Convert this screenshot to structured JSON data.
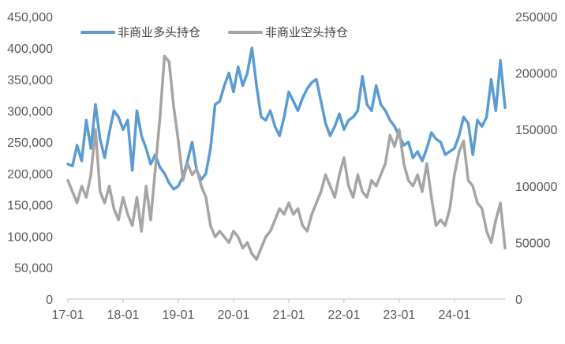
{
  "chart_data": {
    "type": "line",
    "title": "",
    "legend_position": "top-left",
    "grid": false,
    "x_range": [
      "2017-01",
      "2024-12"
    ],
    "x_tick_labels": [
      "17-01",
      "18-01",
      "19-01",
      "20-01",
      "21-01",
      "22-01",
      "23-01",
      "24-01"
    ],
    "y_left": {
      "range": [
        0,
        450000
      ],
      "tick_labels": [
        "0",
        "50,000",
        "100,000",
        "150,000",
        "200,000",
        "250,000",
        "300,000",
        "350,000",
        "400,000",
        "450,000"
      ]
    },
    "y_right": {
      "range": [
        0,
        250000
      ],
      "tick_labels": [
        "0",
        "50000",
        "100000",
        "150000",
        "200000",
        "250000"
      ]
    },
    "series": [
      {
        "name": "非商业多头持仓",
        "axis": "left",
        "color": "#5B9BD5",
        "x": [
          "2017-01",
          "2017-02",
          "2017-03",
          "2017-04",
          "2017-05",
          "2017-06",
          "2017-07",
          "2017-08",
          "2017-09",
          "2017-10",
          "2017-11",
          "2017-12",
          "2018-01",
          "2018-02",
          "2018-03",
          "2018-04",
          "2018-05",
          "2018-06",
          "2018-07",
          "2018-08",
          "2018-09",
          "2018-10",
          "2018-11",
          "2018-12",
          "2019-01",
          "2019-02",
          "2019-03",
          "2019-04",
          "2019-05",
          "2019-06",
          "2019-07",
          "2019-08",
          "2019-09",
          "2019-10",
          "2019-11",
          "2019-12",
          "2020-01",
          "2020-02",
          "2020-03",
          "2020-04",
          "2020-05",
          "2020-06",
          "2020-07",
          "2020-08",
          "2020-09",
          "2020-10",
          "2020-11",
          "2020-12",
          "2021-01",
          "2021-02",
          "2021-03",
          "2021-04",
          "2021-05",
          "2021-06",
          "2021-07",
          "2021-08",
          "2021-09",
          "2021-10",
          "2021-11",
          "2021-12",
          "2022-01",
          "2022-02",
          "2022-03",
          "2022-04",
          "2022-05",
          "2022-06",
          "2022-07",
          "2022-08",
          "2022-09",
          "2022-10",
          "2022-11",
          "2022-12",
          "2023-01",
          "2023-02",
          "2023-03",
          "2023-04",
          "2023-05",
          "2023-06",
          "2023-07",
          "2023-08",
          "2023-09",
          "2023-10",
          "2023-11",
          "2023-12",
          "2024-01",
          "2024-02",
          "2024-03",
          "2024-04",
          "2024-05",
          "2024-06",
          "2024-07",
          "2024-08",
          "2024-09",
          "2024-10",
          "2024-11",
          "2024-12"
        ],
        "values": [
          215000,
          212000,
          245000,
          220000,
          285000,
          240000,
          310000,
          255000,
          225000,
          265000,
          300000,
          290000,
          270000,
          285000,
          205000,
          300000,
          260000,
          240000,
          215000,
          230000,
          210000,
          200000,
          185000,
          175000,
          180000,
          195000,
          220000,
          250000,
          205000,
          190000,
          200000,
          240000,
          310000,
          315000,
          340000,
          360000,
          330000,
          370000,
          340000,
          360000,
          400000,
          340000,
          290000,
          285000,
          300000,
          275000,
          260000,
          290000,
          330000,
          315000,
          300000,
          320000,
          335000,
          345000,
          350000,
          315000,
          280000,
          260000,
          275000,
          295000,
          270000,
          285000,
          290000,
          300000,
          355000,
          310000,
          300000,
          340000,
          310000,
          300000,
          285000,
          275000,
          260000,
          245000,
          250000,
          225000,
          235000,
          220000,
          240000,
          265000,
          255000,
          250000,
          230000,
          235000,
          240000,
          260000,
          290000,
          280000,
          230000,
          285000,
          275000,
          290000,
          350000,
          300000,
          380000,
          305000
        ]
      },
      {
        "name": "非商业空头持仓",
        "axis": "right",
        "color": "#A5A5A5",
        "x": [
          "2017-01",
          "2017-02",
          "2017-03",
          "2017-04",
          "2017-05",
          "2017-06",
          "2017-07",
          "2017-08",
          "2017-09",
          "2017-10",
          "2017-11",
          "2017-12",
          "2018-01",
          "2018-02",
          "2018-03",
          "2018-04",
          "2018-05",
          "2018-06",
          "2018-07",
          "2018-08",
          "2018-09",
          "2018-10",
          "2018-11",
          "2018-12",
          "2019-01",
          "2019-02",
          "2019-03",
          "2019-04",
          "2019-05",
          "2019-06",
          "2019-07",
          "2019-08",
          "2019-09",
          "2019-10",
          "2019-11",
          "2019-12",
          "2020-01",
          "2020-02",
          "2020-03",
          "2020-04",
          "2020-05",
          "2020-06",
          "2020-07",
          "2020-08",
          "2020-09",
          "2020-10",
          "2020-11",
          "2020-12",
          "2021-01",
          "2021-02",
          "2021-03",
          "2021-04",
          "2021-05",
          "2021-06",
          "2021-07",
          "2021-08",
          "2021-09",
          "2021-10",
          "2021-11",
          "2021-12",
          "2022-01",
          "2022-02",
          "2022-03",
          "2022-04",
          "2022-05",
          "2022-06",
          "2022-07",
          "2022-08",
          "2022-09",
          "2022-10",
          "2022-11",
          "2022-12",
          "2023-01",
          "2023-02",
          "2023-03",
          "2023-04",
          "2023-05",
          "2023-06",
          "2023-07",
          "2023-08",
          "2023-09",
          "2023-10",
          "2023-11",
          "2023-12",
          "2024-01",
          "2024-02",
          "2024-03",
          "2024-04",
          "2024-05",
          "2024-06",
          "2024-07",
          "2024-08",
          "2024-09",
          "2024-10",
          "2024-11",
          "2024-12"
        ],
        "values": [
          105000,
          95000,
          85000,
          100000,
          90000,
          110000,
          150000,
          95000,
          85000,
          100000,
          80000,
          70000,
          90000,
          75000,
          65000,
          90000,
          60000,
          100000,
          70000,
          115000,
          160000,
          215000,
          210000,
          170000,
          140000,
          105000,
          120000,
          110000,
          115000,
          100000,
          90000,
          65000,
          55000,
          60000,
          55000,
          50000,
          60000,
          55000,
          45000,
          50000,
          40000,
          35000,
          45000,
          55000,
          60000,
          70000,
          80000,
          75000,
          85000,
          75000,
          80000,
          65000,
          60000,
          75000,
          85000,
          95000,
          110000,
          100000,
          90000,
          110000,
          125000,
          100000,
          90000,
          110000,
          95000,
          90000,
          105000,
          100000,
          110000,
          120000,
          145000,
          135000,
          150000,
          120000,
          105000,
          100000,
          110000,
          95000,
          120000,
          90000,
          65000,
          70000,
          65000,
          80000,
          110000,
          130000,
          140000,
          105000,
          100000,
          85000,
          80000,
          60000,
          50000,
          70000,
          85000,
          45000
        ]
      }
    ]
  }
}
